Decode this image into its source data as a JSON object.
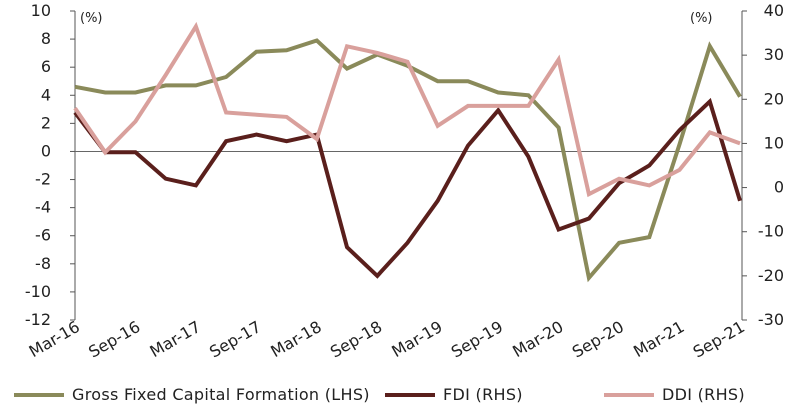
{
  "chart_data": {
    "type": "line",
    "categories": [
      "Mar-16",
      "Jun-16",
      "Sep-16",
      "Dec-16",
      "Mar-17",
      "Jun-17",
      "Sep-17",
      "Dec-17",
      "Mar-18",
      "Jun-18",
      "Sep-18",
      "Dec-18",
      "Mar-19",
      "Jun-19",
      "Sep-19",
      "Dec-19",
      "Mar-20",
      "Jun-20",
      "Sep-20",
      "Dec-20",
      "Mar-21",
      "Jun-21",
      "Sep-21"
    ],
    "x_tick_labels": [
      "Mar-16",
      "Sep-16",
      "Mar-17",
      "Sep-17",
      "Mar-18",
      "Sep-18",
      "Mar-19",
      "Sep-19",
      "Mar-20",
      "Sep-20",
      "Mar-21",
      "Sep-21"
    ],
    "left_axis": {
      "unit": "(%)",
      "ylim": [
        -12,
        10
      ],
      "ticks": [
        -12,
        -10,
        -8,
        -6,
        -4,
        -2,
        0,
        2,
        4,
        6,
        8,
        10
      ]
    },
    "right_axis": {
      "unit": "(%)",
      "ylim": [
        -30,
        40
      ],
      "ticks": [
        -30,
        -20,
        -10,
        0,
        10,
        20,
        30,
        40
      ]
    },
    "series": [
      {
        "name": "Gross Fixed Capital Formation (LHS)",
        "axis": "left",
        "color": "#8a8a5a",
        "values": [
          4.6,
          4.2,
          4.2,
          4.7,
          4.7,
          5.3,
          7.1,
          7.2,
          7.9,
          5.9,
          6.9,
          6.1,
          5.0,
          5.0,
          4.2,
          4.0,
          1.7,
          -9.0,
          -6.5,
          -6.1,
          0.5,
          7.5,
          3.9
        ]
      },
      {
        "name": "FDI (RHS)",
        "axis": "right",
        "color": "#5a1f1c",
        "values": [
          17,
          8,
          8,
          2,
          0.5,
          10.5,
          12,
          10.5,
          12,
          -13.5,
          -20,
          -12.5,
          -3,
          9.5,
          17.5,
          7,
          -9.5,
          -7,
          1,
          5,
          13,
          19.5,
          -3
        ]
      },
      {
        "name": "DDI (RHS)",
        "axis": "right",
        "color": "#d9a09c",
        "values": [
          18,
          8,
          15,
          25.5,
          36.5,
          17,
          16.5,
          16,
          11,
          32,
          30.5,
          28.5,
          14,
          18.5,
          18.5,
          18.5,
          29,
          -1.5,
          2,
          0.5,
          4,
          12.5,
          10
        ]
      }
    ]
  }
}
